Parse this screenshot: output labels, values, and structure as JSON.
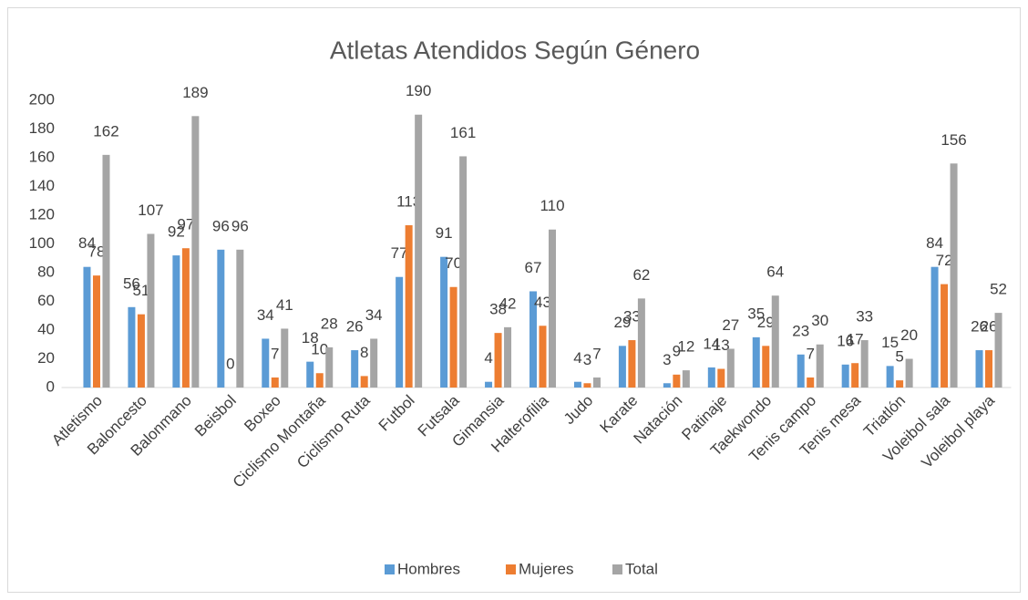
{
  "chart_data": {
    "type": "bar",
    "title": "Atletas Atendidos Según Género",
    "categories": [
      "Atletismo",
      "Baloncesto",
      "Balonmano",
      "Beisbol",
      "Boxeo",
      "Ciclismo Montaña",
      "Ciclismo Ruta",
      "Futbol",
      "Futsala",
      "Gimansia",
      "Halterofilia",
      "Judo",
      "Karate",
      "Natación",
      "Patinaje",
      "Taekwondo",
      "Tenis campo",
      "Tenis mesa",
      "Triatlón",
      "Voleibol sala",
      "Voleibol playa"
    ],
    "series": [
      {
        "name": "Hombres",
        "color": "#5B9BD5",
        "values": [
          84,
          56,
          92,
          96,
          34,
          18,
          26,
          77,
          91,
          4,
          67,
          4,
          29,
          3,
          14,
          35,
          23,
          16,
          15,
          84,
          26
        ]
      },
      {
        "name": "Mujeres",
        "color": "#ED7D31",
        "values": [
          78,
          51,
          97,
          0,
          7,
          10,
          8,
          113,
          70,
          38,
          43,
          3,
          33,
          9,
          13,
          29,
          7,
          17,
          5,
          72,
          26
        ]
      },
      {
        "name": "Total",
        "color": "#A5A5A5",
        "values": [
          162,
          107,
          189,
          96,
          41,
          28,
          34,
          190,
          161,
          42,
          110,
          7,
          62,
          12,
          27,
          64,
          30,
          33,
          20,
          156,
          52
        ]
      }
    ],
    "ylim": [
      0,
      200
    ],
    "yticks": [
      0,
      20,
      40,
      60,
      80,
      100,
      120,
      140,
      160,
      180,
      200
    ],
    "grid": false,
    "legend": "bottom"
  }
}
